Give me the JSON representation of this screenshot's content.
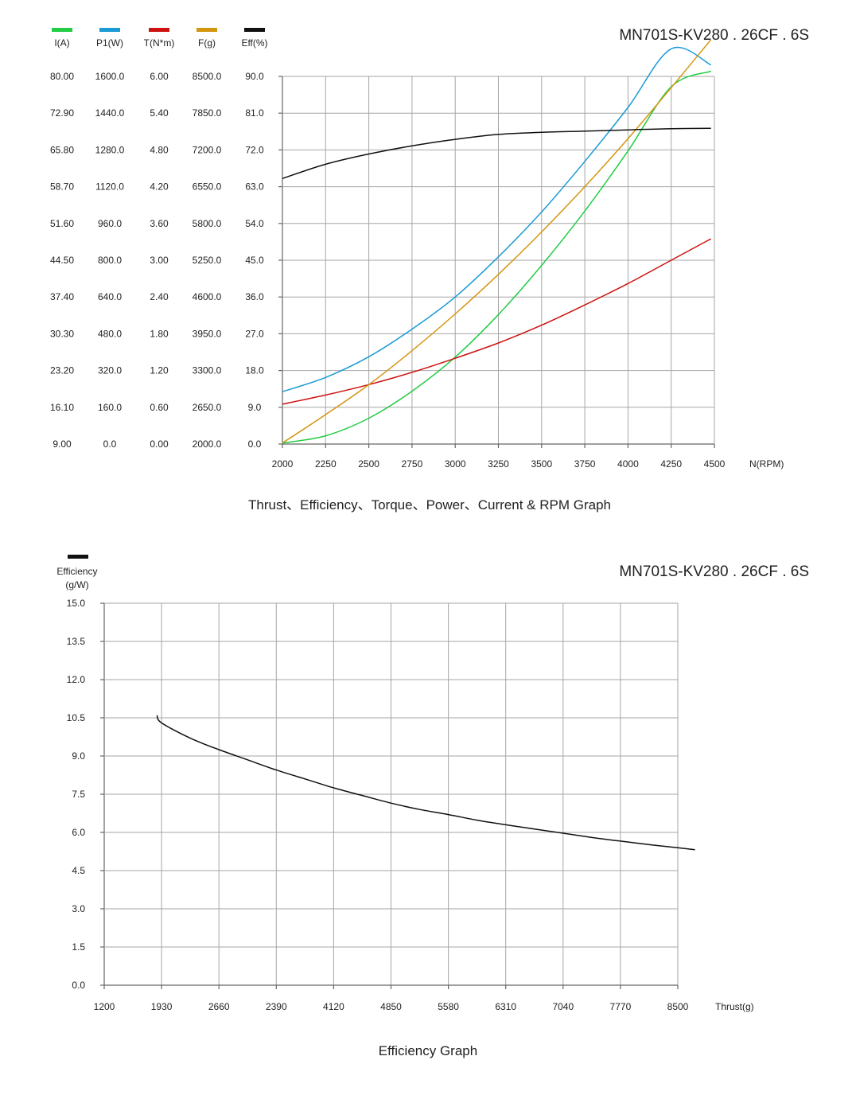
{
  "chart_data": [
    {
      "type": "line",
      "model_label": "MN701S-KV280 . 26CF . 6S",
      "caption": "Thrust、Efficiency、Torque、Power、Current & RPM Graph",
      "xlabel": "N(RPM)",
      "x_ticks": [
        "2000",
        "2250",
        "2500",
        "2750",
        "3000",
        "3250",
        "3500",
        "3750",
        "4000",
        "4250",
        "4500"
      ],
      "xlim": [
        2000,
        4500
      ],
      "grid": true,
      "legend_placement": "top-left",
      "axes": [
        {
          "key": "I",
          "label": "I(A)",
          "color": "#22cc44",
          "ticks": [
            "80.00",
            "72.90",
            "65.80",
            "58.70",
            "51.60",
            "44.50",
            "37.40",
            "30.30",
            "23.20",
            "16.10",
            "9.00"
          ],
          "range": [
            9.0,
            80.0
          ]
        },
        {
          "key": "P1",
          "label": "P1(W)",
          "color": "#1a9ad6",
          "ticks": [
            "1600.0",
            "1440.0",
            "1280.0",
            "1120.0",
            "960.0",
            "800.0",
            "640.0",
            "480.0",
            "320.0",
            "160.0",
            "0.0"
          ],
          "range": [
            0,
            1600
          ]
        },
        {
          "key": "T",
          "label": "T(N*m)",
          "color": "#cc1111",
          "ticks": [
            "6.00",
            "5.40",
            "4.80",
            "4.20",
            "3.60",
            "3.00",
            "2.40",
            "1.80",
            "1.20",
            "0.60",
            "0.00"
          ],
          "range": [
            0,
            6.0
          ]
        },
        {
          "key": "F",
          "label": "F(g)",
          "color": "#d4950f",
          "ticks": [
            "8500.0",
            "7850.0",
            "7200.0",
            "6550.0",
            "5800.0",
            "5250.0",
            "4600.0",
            "3950.0",
            "3300.0",
            "2650.0",
            "2000.0"
          ],
          "range": [
            2000,
            8500
          ]
        },
        {
          "key": "Eff",
          "label": "Eff(%)",
          "color": "#111111",
          "ticks": [
            "90.0",
            "81.0",
            "72.0",
            "63.0",
            "54.0",
            "45.0",
            "36.0",
            "27.0",
            "18.0",
            "9.0",
            "0.0"
          ],
          "range": [
            0,
            90
          ]
        }
      ],
      "series": [
        {
          "name": "I(A)",
          "axis": "I",
          "color": "#22cc44",
          "x": [
            2000,
            2250,
            2500,
            2750,
            3000,
            3250,
            3500,
            3750,
            4000,
            4250,
            4480
          ],
          "y": [
            9.2,
            10.6,
            14.0,
            19.2,
            25.8,
            34.0,
            43.5,
            54.0,
            65.6,
            78.0,
            81.0
          ]
        },
        {
          "name": "P1(W)",
          "axis": "P1",
          "color": "#1a9ad6",
          "x": [
            2000,
            2250,
            2500,
            2750,
            3000,
            3250,
            3500,
            3750,
            4000,
            4250,
            4480
          ],
          "y": [
            228,
            290,
            380,
            500,
            640,
            815,
            1010,
            1230,
            1465,
            1720,
            1650
          ]
        },
        {
          "name": "T(N*m)",
          "axis": "T",
          "color": "#cc1111",
          "x": [
            2000,
            2250,
            2500,
            2750,
            3000,
            3250,
            3500,
            3750,
            4000,
            4250,
            4480
          ],
          "y": [
            0.65,
            0.8,
            0.97,
            1.17,
            1.4,
            1.65,
            1.94,
            2.27,
            2.62,
            3.0,
            3.35
          ]
        },
        {
          "name": "F(g)",
          "axis": "F",
          "color": "#d4950f",
          "x": [
            2000,
            2250,
            2500,
            2750,
            3000,
            3250,
            3500,
            3750,
            4000,
            4250,
            4480
          ],
          "y": [
            2020,
            2520,
            3050,
            3650,
            4300,
            5000,
            5750,
            6550,
            7400,
            8300,
            9150
          ]
        },
        {
          "name": "Eff(%)",
          "axis": "Eff",
          "color": "#111111",
          "x": [
            2000,
            2250,
            2500,
            2750,
            3000,
            3250,
            3500,
            3750,
            4000,
            4250,
            4480
          ],
          "y": [
            65.0,
            68.5,
            71.0,
            73.0,
            74.6,
            75.8,
            76.3,
            76.6,
            76.9,
            77.2,
            77.3
          ]
        }
      ]
    },
    {
      "type": "line",
      "model_label": "MN701S-KV280 . 26CF . 6S",
      "caption": "Efficiency Graph",
      "ylabel": "Efficiency\n(g/W)",
      "ylabel_lines": [
        "Efficiency",
        "(g/W)"
      ],
      "xlabel": "Thrust(g)",
      "y_ticks": [
        "15.0",
        "13.5",
        "12.0",
        "10.5",
        "9.0",
        "7.5",
        "6.0",
        "4.5",
        "3.0",
        "1.5",
        "0.0"
      ],
      "ylim": [
        0,
        15
      ],
      "x_ticks": [
        "1200",
        "1930",
        "2660",
        "2390",
        "4120",
        "4850",
        "5580",
        "6310",
        "7040",
        "7770",
        "8500"
      ],
      "grid": true,
      "legend_placement": "top-left",
      "series": [
        {
          "name": "Efficiency",
          "color": "#111111",
          "x_pos": [
            0.92,
            1.0,
            1.5,
            2.0,
            2.5,
            3.0,
            3.5,
            4.0,
            4.5,
            5.0,
            5.5,
            6.0,
            6.5,
            7.0,
            7.5,
            8.0,
            8.5,
            9.0,
            9.5,
            10.0,
            10.3
          ],
          "y": [
            10.6,
            10.3,
            9.7,
            9.25,
            8.85,
            8.45,
            8.1,
            7.75,
            7.45,
            7.15,
            6.9,
            6.7,
            6.48,
            6.3,
            6.13,
            5.97,
            5.8,
            5.66,
            5.52,
            5.4,
            5.32
          ]
        }
      ]
    }
  ]
}
